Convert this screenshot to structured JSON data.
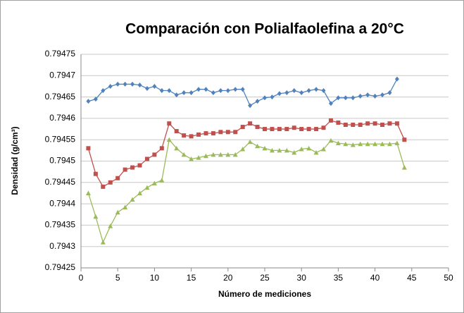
{
  "chart_data": {
    "type": "line",
    "title": "Comparación con Polialfaolefina a 20°C",
    "xlabel": "Número de mediciones",
    "ylabel": "Densidad (g/cm³)",
    "x": [
      1,
      2,
      3,
      4,
      5,
      6,
      7,
      8,
      9,
      10,
      11,
      12,
      13,
      14,
      15,
      16,
      17,
      18,
      19,
      20,
      21,
      22,
      23,
      24,
      25,
      26,
      27,
      28,
      29,
      30,
      31,
      32,
      33,
      34,
      35,
      36,
      37,
      38,
      39,
      40,
      41,
      42,
      43,
      44
    ],
    "series": [
      {
        "color": "#4f81bd",
        "marker": "diamond",
        "values": [
          0.79464,
          0.794645,
          0.794665,
          0.794675,
          0.79468,
          0.79468,
          0.79468,
          0.794678,
          0.79467,
          0.794675,
          0.794665,
          0.794665,
          0.794655,
          0.79466,
          0.79466,
          0.794668,
          0.794668,
          0.79466,
          0.794665,
          0.794665,
          0.794668,
          0.794668,
          0.79463,
          0.79464,
          0.794648,
          0.79465,
          0.794658,
          0.79466,
          0.794665,
          0.79466,
          0.794665,
          0.794668,
          0.794665,
          0.794635,
          0.794648,
          0.794648,
          0.794648,
          0.794652,
          0.794655,
          0.794652,
          0.794655,
          0.79466,
          0.794692,
          null
        ]
      },
      {
        "color": "#c0504d",
        "marker": "square",
        "values": [
          0.79453,
          0.79447,
          0.79444,
          0.79445,
          0.79446,
          0.79448,
          0.794485,
          0.79449,
          0.794505,
          0.794515,
          0.79453,
          0.794588,
          0.79457,
          0.79456,
          0.794558,
          0.794562,
          0.794565,
          0.794565,
          0.794568,
          0.794568,
          0.794568,
          0.79458,
          0.794588,
          0.79458,
          0.794575,
          0.794575,
          0.794575,
          0.794575,
          0.794578,
          0.794575,
          0.794575,
          0.794575,
          0.794578,
          0.794595,
          0.79459,
          0.794585,
          0.794585,
          0.794585,
          0.794588,
          0.794588,
          0.794585,
          0.794588,
          0.794588,
          0.79455
        ]
      },
      {
        "color": "#9bbb59",
        "marker": "triangle",
        "values": [
          0.794425,
          0.79437,
          0.79431,
          0.794348,
          0.79438,
          0.794392,
          0.79441,
          0.794425,
          0.794438,
          0.794448,
          0.794455,
          0.79455,
          0.79453,
          0.794515,
          0.794505,
          0.794508,
          0.794512,
          0.794515,
          0.794515,
          0.794515,
          0.794515,
          0.794528,
          0.794545,
          0.794535,
          0.79453,
          0.794525,
          0.794525,
          0.794525,
          0.79452,
          0.794528,
          0.79453,
          0.79452,
          0.794528,
          0.794548,
          0.794542,
          0.79454,
          0.794538,
          0.79454,
          0.79454,
          0.79454,
          0.79454,
          0.79454,
          0.794542,
          0.794485
        ]
      }
    ],
    "xlim": [
      0,
      50
    ],
    "xticks": [
      0,
      5,
      10,
      15,
      20,
      25,
      30,
      35,
      40,
      45,
      50
    ],
    "ylim": [
      0.79425,
      0.79475
    ],
    "yticks": [
      0.79425,
      0.7943,
      0.79435,
      0.7944,
      0.79445,
      0.7945,
      0.79455,
      0.7946,
      0.79465,
      0.7947,
      0.79475
    ],
    "grid": true
  }
}
